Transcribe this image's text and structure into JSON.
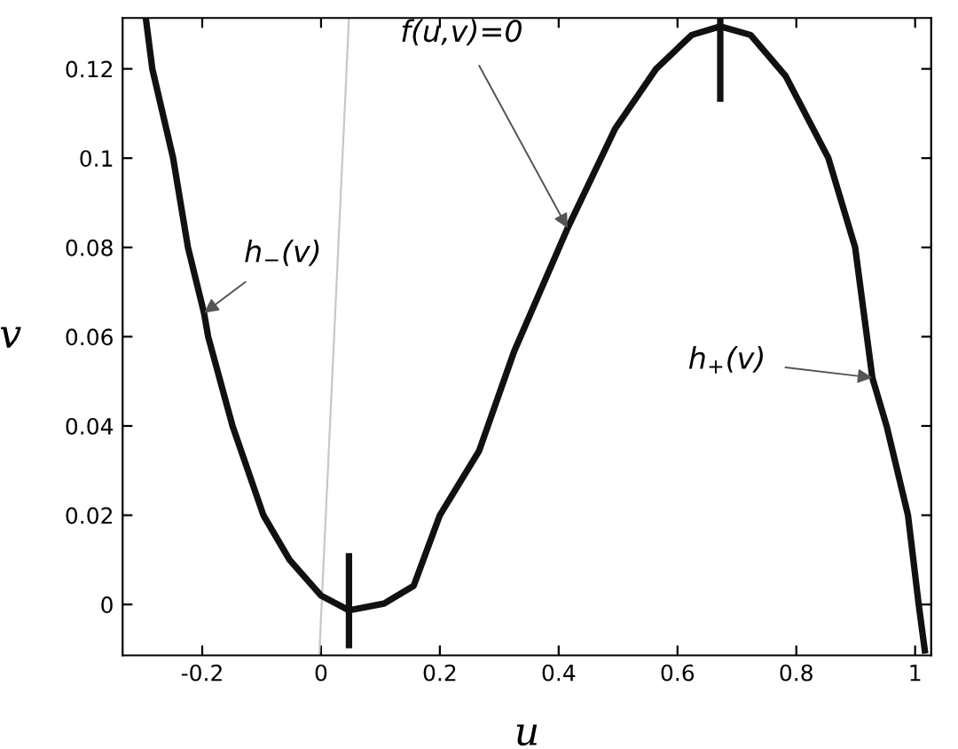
{
  "chart_data": {
    "type": "line",
    "xlabel": "u",
    "ylabel": "v",
    "xlim": [
      -0.334,
      1.027
    ],
    "ylim": [
      -0.0114,
      0.1314
    ],
    "xticks": [
      -0.2,
      0,
      0.2,
      0.4,
      0.6,
      0.8,
      1
    ],
    "yticks": [
      0,
      0.02,
      0.04,
      0.06,
      0.08,
      0.1,
      0.12
    ],
    "grid": false,
    "legend": false,
    "marker": "none",
    "line_style": "solid",
    "series": [
      {
        "color": "#111111",
        "x": [
          -0.295,
          -0.284,
          -0.249,
          -0.224,
          -0.197,
          -0.19,
          -0.149,
          -0.097,
          -0.053,
          0.0,
          0.047,
          0.106,
          0.156,
          0.2,
          0.266,
          0.325,
          0.415,
          0.495,
          0.564,
          0.624,
          0.672,
          0.723,
          0.782,
          0.854,
          0.899,
          0.928,
          0.952,
          0.988,
          1.006,
          1.017
        ],
        "values": [
          0.1314,
          0.12,
          0.1,
          0.08,
          0.0653,
          0.06,
          0.04,
          0.02,
          0.01,
          0.002,
          -0.0013,
          0.0002,
          0.0042,
          0.02,
          0.0344,
          0.0567,
          0.0843,
          0.1066,
          0.12,
          0.1276,
          0.1295,
          0.1276,
          0.1184,
          0.1,
          0.08,
          0.0508,
          0.04,
          0.02,
          0.0,
          -0.011
        ]
      },
      {
        "color": "#c8c8c8",
        "x": [
          -0.003,
          0.047
        ],
        "values": [
          -0.0114,
          0.1314
        ]
      },
      {
        "color": "#111111",
        "x": [
          0.047,
          0.047
        ],
        "values": [
          -0.0098,
          0.0115
        ]
      },
      {
        "color": "#111111",
        "x": [
          0.672,
          0.672
        ],
        "values": [
          0.1126,
          0.1314
        ]
      }
    ],
    "annotations": [
      {
        "text": "h$_{−}$(v)",
        "x": -0.197,
        "y": 0.0653
      },
      {
        "text": "f(u,v)=0",
        "x": 0.415,
        "y": 0.0843
      },
      {
        "text": "h$_{+}$(v)",
        "x": 0.928,
        "y": 0.0508
      }
    ]
  }
}
